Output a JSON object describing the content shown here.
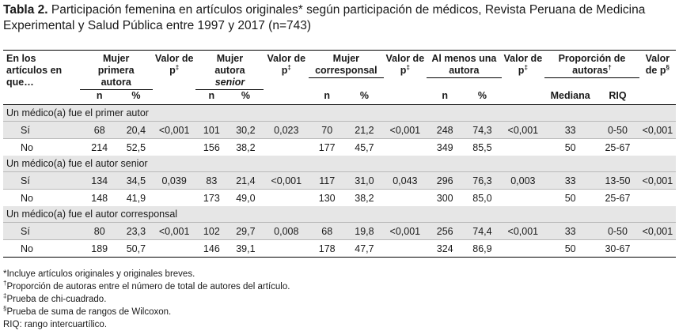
{
  "caption": {
    "label": "Tabla 2.",
    "text": " Participación femenina en artículos originales* según participación de médicos, Revista Peruana de Medicina Experimental y Salud Pública entre 1997 y 2017 (n=743)"
  },
  "header": {
    "first_col": "En los artículos en que…",
    "groups": [
      {
        "title": "Mujer primera autora",
        "cols": [
          "n",
          "%"
        ],
        "valor": "Valor de p",
        "valor_mark": "‡"
      },
      {
        "title": "Mujer autora",
        "title_italic": "senior",
        "cols": [
          "n",
          "%"
        ],
        "valor": "Valor de p",
        "valor_mark": "‡"
      },
      {
        "title": "Mujer corresponsal",
        "cols": [
          "n",
          "%"
        ],
        "valor": "Valor de p",
        "valor_mark": "‡"
      },
      {
        "title": "Al menos una autora",
        "cols": [
          "n",
          "%"
        ],
        "valor": "Valor de p",
        "valor_mark": "‡"
      },
      {
        "title": "Proporción de autoras",
        "title_mark": "†",
        "cols": [
          "Mediana",
          "RIQ"
        ],
        "valor": "Valor de p",
        "valor_mark": "§"
      }
    ]
  },
  "sections": [
    {
      "title": "Un médico(a) fue el primer autor",
      "rows": [
        {
          "label": "Sí",
          "cells": [
            "68",
            "20,4",
            "<0,001",
            "101",
            "30,2",
            "0,023",
            "70",
            "21,2",
            "<0,001",
            "248",
            "74,3",
            "<0,001",
            "33",
            "0-50",
            "<0,001"
          ]
        },
        {
          "label": "No",
          "cells": [
            "214",
            "52,5",
            "",
            "156",
            "38,2",
            "",
            "177",
            "45,7",
            "",
            "349",
            "85,5",
            "",
            "50",
            "25-67",
            ""
          ]
        }
      ]
    },
    {
      "title": "Un médico(a) fue el autor senior",
      "rows": [
        {
          "label": "Sí",
          "cells": [
            "134",
            "34,5",
            "0,039",
            "83",
            "21,4",
            "<0,001",
            "117",
            "31,0",
            "0,043",
            "296",
            "76,3",
            "0,003",
            "33",
            "13-50",
            "<0,001"
          ]
        },
        {
          "label": "No",
          "cells": [
            "148",
            "41,9",
            "",
            "173",
            "49,0",
            "",
            "130",
            "38,2",
            "",
            "300",
            "85,0",
            "",
            "50",
            "25-67",
            ""
          ]
        }
      ]
    },
    {
      "title": "Un médico(a) fue el autor corresponsal",
      "rows": [
        {
          "label": "Sí",
          "cells": [
            "80",
            "23,3",
            "<0,001",
            "102",
            "29,7",
            "0,008",
            "68",
            "19,8",
            "<0,001",
            "256",
            "74,4",
            "<0,001",
            "33",
            "0-50",
            "<0,001"
          ]
        },
        {
          "label": "No",
          "cells": [
            "189",
            "50,7",
            "",
            "146",
            "39,1",
            "",
            "178",
            "47,7",
            "",
            "324",
            "86,9",
            "",
            "50",
            "30-67",
            ""
          ]
        }
      ]
    }
  ],
  "notes": [
    {
      "mark": "",
      "text": "*Incluye artículos originales y originales breves."
    },
    {
      "mark": "†",
      "text": "Proporción de autoras entre el número de total de autores del artículo."
    },
    {
      "mark": "‡",
      "text": "Prueba de chi-cuadrado."
    },
    {
      "mark": "§",
      "text": "Prueba de suma de rangos de Wilcoxon."
    },
    {
      "mark": "",
      "text": "RIQ: rango intercuartílico."
    }
  ]
}
